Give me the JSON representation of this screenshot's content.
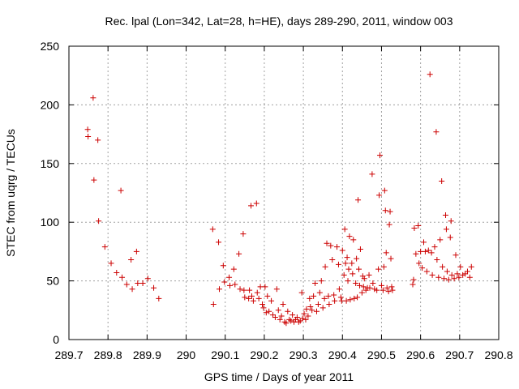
{
  "chart_data": {
    "type": "scatter",
    "title": "Rec. lpal (Lon=342, Lat=28, h=HE), days 289-290, 2011, window 003",
    "xlabel": "GPS time / Days of year 2011",
    "ylabel": "STEC from uqrg / TECUs",
    "xlim": [
      289.7,
      290.8
    ],
    "ylim": [
      0,
      250
    ],
    "xticks": [
      "289.7",
      "289.8",
      "289.9",
      "290",
      "290.1",
      "290.2",
      "290.3",
      "290.4",
      "290.5",
      "290.6",
      "290.7",
      "290.8"
    ],
    "yticks": [
      "0",
      "50",
      "100",
      "150",
      "200",
      "250"
    ],
    "grid": true,
    "marker": "plus",
    "color": "#cc0000",
    "points": [
      [
        289.748,
        179
      ],
      [
        289.749,
        173
      ],
      [
        289.762,
        206
      ],
      [
        289.764,
        136
      ],
      [
        289.774,
        170
      ],
      [
        289.776,
        101
      ],
      [
        289.792,
        79
      ],
      [
        289.808,
        65
      ],
      [
        289.822,
        57
      ],
      [
        289.833,
        127
      ],
      [
        289.836,
        53
      ],
      [
        289.848,
        47
      ],
      [
        289.859,
        68
      ],
      [
        289.862,
        43
      ],
      [
        289.873,
        75
      ],
      [
        289.876,
        48
      ],
      [
        289.889,
        48
      ],
      [
        289.902,
        52
      ],
      [
        289.917,
        44
      ],
      [
        289.93,
        35
      ],
      [
        290.068,
        94
      ],
      [
        290.07,
        30
      ],
      [
        290.083,
        83
      ],
      [
        290.085,
        43
      ],
      [
        290.095,
        63
      ],
      [
        290.098,
        49
      ],
      [
        290.11,
        53
      ],
      [
        290.112,
        46
      ],
      [
        290.122,
        60
      ],
      [
        290.125,
        47
      ],
      [
        290.135,
        73
      ],
      [
        290.138,
        43
      ],
      [
        290.146,
        90
      ],
      [
        290.148,
        42
      ],
      [
        290.15,
        36
      ],
      [
        290.16,
        35
      ],
      [
        290.162,
        42
      ],
      [
        290.166,
        114
      ],
      [
        290.168,
        37
      ],
      [
        290.172,
        33
      ],
      [
        290.18,
        116
      ],
      [
        290.182,
        40
      ],
      [
        290.186,
        35
      ],
      [
        290.19,
        45
      ],
      [
        290.195,
        30
      ],
      [
        290.198,
        27
      ],
      [
        290.202,
        45
      ],
      [
        290.205,
        23
      ],
      [
        290.208,
        37
      ],
      [
        290.212,
        24
      ],
      [
        290.218,
        33
      ],
      [
        290.222,
        21
      ],
      [
        290.228,
        19
      ],
      [
        290.232,
        43
      ],
      [
        290.236,
        25
      ],
      [
        290.24,
        17
      ],
      [
        290.244,
        20
      ],
      [
        290.248,
        30
      ],
      [
        290.252,
        15
      ],
      [
        290.256,
        14
      ],
      [
        290.26,
        24
      ],
      [
        290.264,
        17
      ],
      [
        290.268,
        16
      ],
      [
        290.272,
        21
      ],
      [
        290.276,
        15
      ],
      [
        290.28,
        17
      ],
      [
        290.284,
        19
      ],
      [
        290.288,
        15
      ],
      [
        290.292,
        16
      ],
      [
        290.296,
        40
      ],
      [
        290.298,
        18
      ],
      [
        290.302,
        22
      ],
      [
        290.306,
        17
      ],
      [
        290.308,
        26
      ],
      [
        290.312,
        20
      ],
      [
        290.316,
        35
      ],
      [
        290.318,
        28
      ],
      [
        290.322,
        25
      ],
      [
        290.326,
        37
      ],
      [
        290.33,
        48
      ],
      [
        290.334,
        24
      ],
      [
        290.338,
        30
      ],
      [
        290.342,
        40
      ],
      [
        290.346,
        50
      ],
      [
        290.35,
        27
      ],
      [
        290.354,
        35
      ],
      [
        290.356,
        62
      ],
      [
        290.36,
        82
      ],
      [
        290.364,
        37
      ],
      [
        290.366,
        30
      ],
      [
        290.37,
        80
      ],
      [
        290.374,
        68
      ],
      [
        290.378,
        38
      ],
      [
        290.38,
        33
      ],
      [
        290.386,
        79
      ],
      [
        290.39,
        64
      ],
      [
        290.392,
        43
      ],
      [
        290.396,
        36
      ],
      [
        290.398,
        33
      ],
      [
        290.4,
        76
      ],
      [
        290.404,
        55
      ],
      [
        290.406,
        94
      ],
      [
        290.408,
        65
      ],
      [
        290.41,
        33
      ],
      [
        290.412,
        70
      ],
      [
        290.414,
        50
      ],
      [
        290.416,
        60
      ],
      [
        290.418,
        88
      ],
      [
        290.42,
        34
      ],
      [
        290.424,
        65
      ],
      [
        290.426,
        56
      ],
      [
        290.428,
        85
      ],
      [
        290.43,
        35
      ],
      [
        290.434,
        48
      ],
      [
        290.436,
        69
      ],
      [
        290.438,
        36
      ],
      [
        290.44,
        119
      ],
      [
        290.442,
        60
      ],
      [
        290.444,
        46
      ],
      [
        290.446,
        77
      ],
      [
        290.45,
        40
      ],
      [
        290.452,
        54
      ],
      [
        290.454,
        45
      ],
      [
        290.456,
        52
      ],
      [
        290.46,
        42
      ],
      [
        290.464,
        44
      ],
      [
        290.468,
        55
      ],
      [
        290.47,
        44
      ],
      [
        290.476,
        141
      ],
      [
        290.478,
        48
      ],
      [
        290.482,
        43
      ],
      [
        290.488,
        42
      ],
      [
        290.492,
        60
      ],
      [
        290.494,
        123
      ],
      [
        290.496,
        157
      ],
      [
        290.5,
        46
      ],
      [
        290.504,
        42
      ],
      [
        290.506,
        62
      ],
      [
        290.508,
        127
      ],
      [
        290.51,
        110
      ],
      [
        290.512,
        74
      ],
      [
        290.514,
        44
      ],
      [
        290.518,
        41
      ],
      [
        290.52,
        98
      ],
      [
        290.522,
        109
      ],
      [
        290.524,
        69
      ],
      [
        290.526,
        45
      ],
      [
        290.528,
        42
      ],
      [
        290.58,
        47
      ],
      [
        290.582,
        51
      ],
      [
        290.584,
        95
      ],
      [
        290.588,
        73
      ],
      [
        290.594,
        97
      ],
      [
        290.596,
        65
      ],
      [
        290.6,
        75
      ],
      [
        290.604,
        61
      ],
      [
        290.608,
        83
      ],
      [
        290.612,
        75
      ],
      [
        290.616,
        58
      ],
      [
        290.62,
        76
      ],
      [
        290.624,
        226
      ],
      [
        290.628,
        74
      ],
      [
        290.63,
        55
      ],
      [
        290.636,
        79
      ],
      [
        290.64,
        177
      ],
      [
        290.642,
        68
      ],
      [
        290.646,
        53
      ],
      [
        290.65,
        85
      ],
      [
        290.654,
        135
      ],
      [
        290.656,
        62
      ],
      [
        290.66,
        52
      ],
      [
        290.664,
        106
      ],
      [
        290.666,
        94
      ],
      [
        290.668,
        58
      ],
      [
        290.672,
        51
      ],
      [
        290.676,
        87
      ],
      [
        290.678,
        101
      ],
      [
        290.68,
        55
      ],
      [
        290.686,
        52
      ],
      [
        290.69,
        72
      ],
      [
        290.694,
        56
      ],
      [
        290.698,
        53
      ],
      [
        290.702,
        62
      ],
      [
        290.708,
        55
      ],
      [
        290.714,
        56
      ],
      [
        290.72,
        58
      ],
      [
        290.726,
        53
      ],
      [
        290.73,
        62
      ]
    ]
  }
}
